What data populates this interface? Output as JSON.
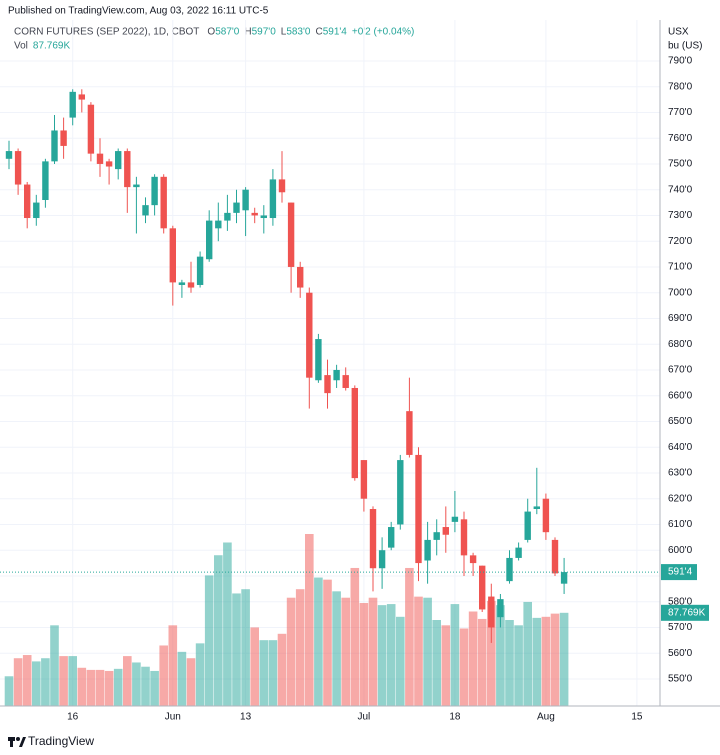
{
  "header": {
    "published": "Published on TradingView.com, Aug 03, 2022 16:11 UTC-5",
    "footer": "TradingView"
  },
  "chart_data": {
    "type": "candlestick",
    "title": "CORN FUTURES (SEP 2022), 1D, CBOT",
    "legend": [
      {
        "key": "O",
        "value": "587'0"
      },
      {
        "key": "H",
        "value": "597'0"
      },
      {
        "key": "L",
        "value": "583'0"
      },
      {
        "key": "C",
        "value": "591'4"
      }
    ],
    "change": "+0'2 (+0.04%)",
    "volume_name": "Vol",
    "volume_text": "87.769K",
    "unit_labels": [
      "USX",
      "bu (US)"
    ],
    "up_color": "#26a69a",
    "down_color": "#ef5350",
    "categories": [
      null,
      null,
      null,
      null,
      null,
      null,
      null,
      "16",
      null,
      null,
      null,
      null,
      null,
      null,
      null,
      null,
      null,
      null,
      "Jun",
      null,
      null,
      null,
      null,
      null,
      null,
      null,
      "13",
      null,
      null,
      null,
      null,
      null,
      null,
      null,
      null,
      null,
      null,
      null,
      null,
      "Jul",
      null,
      null,
      null,
      null,
      null,
      null,
      null,
      null,
      null,
      "18",
      null,
      null,
      null,
      null,
      null,
      null,
      null,
      null,
      null,
      "Aug",
      null,
      null,
      null,
      null,
      null,
      null,
      null,
      null,
      null,
      "15"
    ],
    "open": [
      752,
      755,
      742,
      729,
      736,
      751,
      763,
      768,
      777,
      773,
      754,
      751,
      748,
      755,
      741,
      730,
      734,
      745,
      725,
      703,
      704,
      703,
      713,
      725,
      728,
      731,
      732,
      731,
      729,
      729,
      744,
      735,
      710,
      700,
      666,
      668,
      666,
      668,
      663,
      635,
      616,
      593,
      601,
      610,
      654,
      637,
      596,
      604,
      609,
      611,
      612,
      598,
      594,
      582,
      574,
      588,
      597,
      604,
      616,
      620,
      604,
      587,
      null,
      null,
      null,
      null,
      null,
      null,
      null,
      null
    ],
    "high": [
      759,
      756,
      743,
      738,
      752,
      769,
      768,
      779,
      779,
      774,
      760,
      752,
      756,
      756,
      745,
      737,
      746,
      746,
      726,
      705,
      712,
      716,
      732,
      735,
      738,
      740,
      741,
      733,
      734,
      748,
      755,
      735,
      712,
      702,
      684,
      674,
      672,
      671,
      664,
      635,
      617,
      605,
      611,
      637,
      667,
      640,
      611,
      612,
      617,
      623,
      615,
      599,
      594,
      587,
      583,
      600,
      603,
      620,
      632,
      622,
      605,
      597,
      null,
      null,
      null,
      null,
      null,
      null,
      null,
      null
    ],
    "low": [
      748,
      738,
      725,
      726,
      733,
      750,
      752,
      765,
      770,
      751,
      745,
      742,
      744,
      731,
      723,
      727,
      730,
      723,
      695,
      698,
      700,
      702,
      712,
      720,
      724,
      727,
      722,
      727,
      723,
      726,
      735,
      700,
      698,
      655,
      665,
      655,
      663,
      662,
      627,
      615,
      584,
      585,
      600,
      608,
      636,
      588,
      587,
      598,
      599,
      607,
      590,
      590,
      576,
      564,
      570,
      587,
      596,
      603,
      614,
      604,
      590,
      583,
      null,
      null,
      null,
      null,
      null,
      null,
      null,
      null
    ],
    "close": [
      755,
      742,
      729,
      735,
      751,
      763,
      757,
      778,
      775,
      754,
      750,
      749,
      755,
      741,
      742,
      734,
      745,
      725,
      704,
      704,
      702,
      714,
      728,
      728,
      731,
      735,
      740,
      730,
      730,
      744,
      739,
      710,
      702,
      667,
      682,
      661,
      670,
      663,
      628,
      620,
      593,
      600,
      609,
      635,
      637,
      595,
      604,
      607,
      606,
      613,
      598,
      595,
      577,
      570,
      581,
      597,
      601,
      615,
      617,
      607,
      591,
      591.5,
      null,
      null,
      null,
      null,
      null,
      null,
      null,
      null
    ],
    "volume": [
      28000,
      45000,
      48000,
      42000,
      45000,
      76000,
      47000,
      47000,
      36000,
      34000,
      34000,
      33000,
      35000,
      47000,
      41000,
      37000,
      33000,
      57000,
      76000,
      51000,
      45000,
      59000,
      123000,
      142000,
      154000,
      106000,
      110000,
      74000,
      62000,
      62000,
      68000,
      102000,
      110000,
      162000,
      121000,
      119000,
      108000,
      102000,
      130000,
      97000,
      102000,
      95000,
      96000,
      84000,
      130000,
      103000,
      102000,
      81000,
      76000,
      96000,
      73000,
      89000,
      82000,
      99000,
      95000,
      81000,
      76000,
      98000,
      83000,
      84000,
      87000,
      87769,
      null,
      null,
      null,
      null,
      null,
      null,
      null,
      null
    ],
    "ylim": [
      539.5,
      805.9
    ],
    "yticks": [
      {
        "value": 550,
        "label": "550'0"
      },
      {
        "value": 560,
        "label": "560'0"
      },
      {
        "value": 570,
        "label": "570'0"
      },
      {
        "value": 580,
        "label": "580'0"
      },
      {
        "value": 590,
        "label": "590'0"
      },
      {
        "value": 600,
        "label": "600'0"
      },
      {
        "value": 610,
        "label": "610'0"
      },
      {
        "value": 620,
        "label": "620'0"
      },
      {
        "value": 630,
        "label": "630'0"
      },
      {
        "value": 640,
        "label": "640'0"
      },
      {
        "value": 650,
        "label": "650'0"
      },
      {
        "value": 660,
        "label": "660'0"
      },
      {
        "value": 670,
        "label": "670'0"
      },
      {
        "value": 680,
        "label": "680'0"
      },
      {
        "value": 690,
        "label": "690'0"
      },
      {
        "value": 700,
        "label": "700'0"
      },
      {
        "value": 710,
        "label": "710'0"
      },
      {
        "value": 720,
        "label": "720'0"
      },
      {
        "value": 730,
        "label": "730'0"
      },
      {
        "value": 740,
        "label": "740'0"
      },
      {
        "value": 750,
        "label": "750'0"
      },
      {
        "value": 760,
        "label": "760'0"
      },
      {
        "value": 770,
        "label": "770'0"
      },
      {
        "value": 780,
        "label": "780'0"
      },
      {
        "value": 790,
        "label": "790'0"
      }
    ],
    "grid": true
  }
}
